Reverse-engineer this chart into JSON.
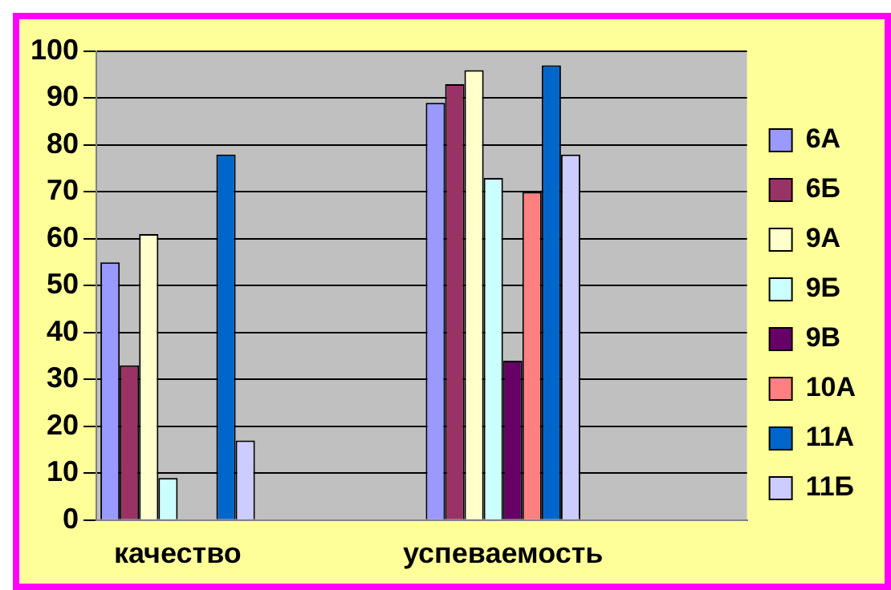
{
  "chart_data": {
    "type": "bar",
    "categories": [
      "качество",
      null,
      "успеваемость",
      null
    ],
    "series": [
      {
        "name": "6А",
        "color": "#9999ff",
        "values": [
          55,
          null,
          89,
          null
        ]
      },
      {
        "name": "6Б",
        "color": "#993366",
        "values": [
          33,
          null,
          93,
          null
        ]
      },
      {
        "name": "9А",
        "color": "#ffffcc",
        "values": [
          61,
          null,
          96,
          null
        ]
      },
      {
        "name": "9Б",
        "color": "#ccffff",
        "values": [
          9,
          null,
          73,
          null
        ]
      },
      {
        "name": "9В",
        "color": "#660066",
        "values": [
          0,
          null,
          34,
          null
        ]
      },
      {
        "name": "10А",
        "color": "#ff8080",
        "values": [
          0,
          null,
          70,
          null
        ]
      },
      {
        "name": "11А",
        "color": "#0066cc",
        "values": [
          78,
          null,
          97,
          null
        ]
      },
      {
        "name": "11Б",
        "color": "#ccccff",
        "values": [
          17,
          null,
          78,
          null
        ]
      }
    ],
    "ylim": [
      0,
      100
    ],
    "yticks": [
      0,
      10,
      20,
      30,
      40,
      50,
      60,
      70,
      80,
      90,
      100
    ],
    "grid": "y",
    "legend": "right"
  }
}
